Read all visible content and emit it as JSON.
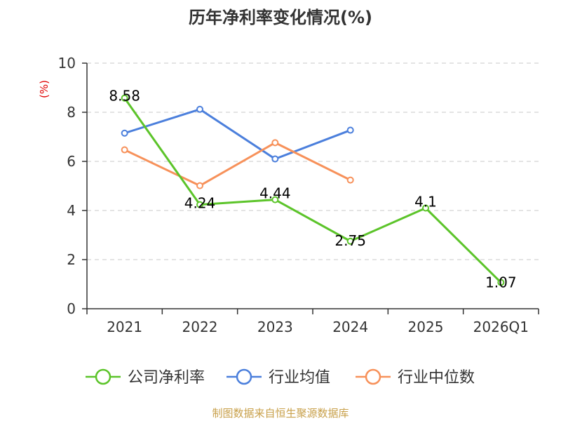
{
  "chart_data": {
    "type": "line",
    "title": "历年净利率变化情况(%)",
    "ylabel": "(%)",
    "ylim": [
      0,
      10
    ],
    "yticks": [
      0,
      2,
      4,
      6,
      8,
      10
    ],
    "categories": [
      "2021",
      "2022",
      "2023",
      "2024",
      "2025",
      "2026Q1"
    ],
    "grid": true,
    "legend_position": "bottom",
    "series": [
      {
        "name": "公司净利率",
        "color": "#5cc42a",
        "values": [
          8.58,
          4.24,
          4.44,
          2.75,
          4.1,
          1.07
        ],
        "labels": [
          "8.58",
          "4.24",
          "4.44",
          "2.75",
          "4.1",
          "1.07"
        ]
      },
      {
        "name": "行业均值",
        "color": "#4b7fdc",
        "values": [
          7.15,
          8.12,
          6.1,
          7.27,
          null,
          null
        ]
      },
      {
        "name": "行业中位数",
        "color": "#f7915a",
        "values": [
          6.47,
          5.01,
          6.76,
          5.24,
          null,
          null
        ]
      }
    ]
  },
  "source": "制图数据来自恒生聚源数据库"
}
